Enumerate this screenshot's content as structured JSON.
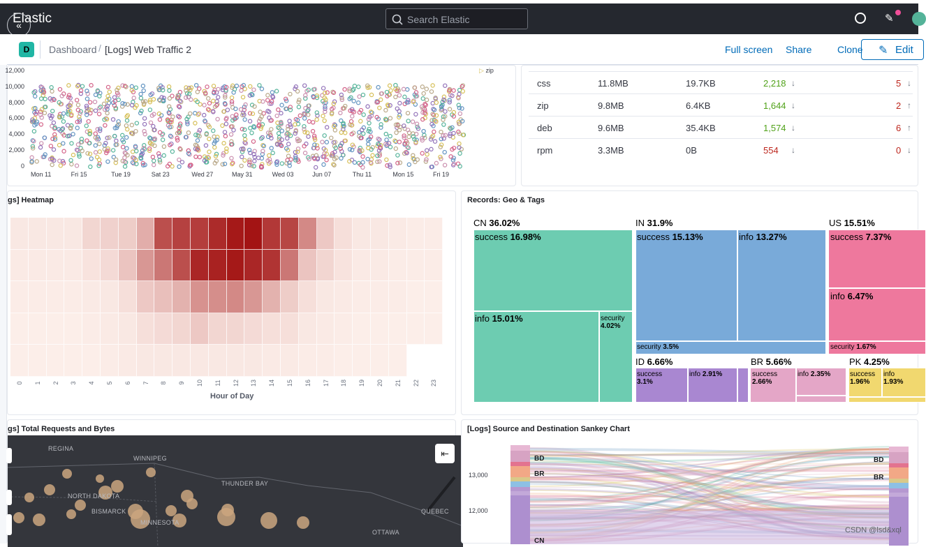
{
  "header": {
    "brand": "Elastic",
    "search_placeholder": "Search Elastic",
    "collapse_glyph": "«"
  },
  "breadcrumb": {
    "space_initial": "D",
    "items": [
      "Dashboard",
      "[Logs] Web Traffic 2"
    ],
    "separator": "/"
  },
  "actions": {
    "full_screen": "Full screen",
    "share": "Share",
    "clone": "Clone",
    "edit": "Edit"
  },
  "scatter_panel": {
    "y_ticks": [
      "12,000",
      "10,000",
      "8,000",
      "6,000",
      "4,000",
      "2,000",
      "0"
    ],
    "x_ticks": [
      "Mon 11",
      "Fri 15",
      "Tue 19",
      "Sat 23",
      "Wed 27",
      "May 31",
      "Wed 03",
      "Jun 07",
      "Thu 11",
      "Mon 15",
      "Fri 19"
    ],
    "legend_item": "zip"
  },
  "table_panel": {
    "rows": [
      {
        "ext": "css",
        "total": "11.8MB",
        "avg": "19.7KB",
        "count": "2,218",
        "count_dir": "↓",
        "errors": "5",
        "err_dir": "↓"
      },
      {
        "ext": "zip",
        "total": "9.8MB",
        "avg": "6.4KB",
        "count": "1,644",
        "count_dir": "↓",
        "errors": "2",
        "err_dir": "↑"
      },
      {
        "ext": "deb",
        "total": "9.6MB",
        "avg": "35.4KB",
        "count": "1,574",
        "count_dir": "↓",
        "errors": "6",
        "err_dir": "↑"
      },
      {
        "ext": "rpm",
        "total": "3.3MB",
        "avg": "0B",
        "count": "554",
        "count_dir": "↓",
        "errors": "0",
        "err_dir": "↓"
      }
    ]
  },
  "heatmap_panel": {
    "title": "gs] Heatmap",
    "xlabel": "Hour of Day",
    "x_ticks": [
      "0",
      "1",
      "2",
      "3",
      "4",
      "5",
      "6",
      "7",
      "8",
      "9",
      "10",
      "11",
      "12",
      "13",
      "14",
      "15",
      "16",
      "17",
      "18",
      "19",
      "20",
      "21",
      "22",
      "23"
    ],
    "rows": [
      [
        0.06,
        0.06,
        0.06,
        0.06,
        0.14,
        0.16,
        0.18,
        0.32,
        0.74,
        0.8,
        0.82,
        0.9,
        0.98,
        1.0,
        0.84,
        0.78,
        0.48,
        0.2,
        0.1,
        0.06,
        0.06,
        0.05,
        0.04,
        0.04
      ],
      [
        0.05,
        0.05,
        0.05,
        0.05,
        0.08,
        0.12,
        0.22,
        0.42,
        0.56,
        0.74,
        0.92,
        0.94,
        0.98,
        0.92,
        0.86,
        0.56,
        0.22,
        0.14,
        0.08,
        0.05,
        0.05,
        0.04,
        0.04,
        0.04
      ],
      [
        0.04,
        0.04,
        0.04,
        0.04,
        0.05,
        0.06,
        0.1,
        0.2,
        0.24,
        0.3,
        0.44,
        0.46,
        0.48,
        0.42,
        0.3,
        0.18,
        0.1,
        0.06,
        0.05,
        0.04,
        0.04,
        0.04,
        0.03,
        0.03
      ],
      [
        0.03,
        0.03,
        0.03,
        0.03,
        0.04,
        0.05,
        0.06,
        0.1,
        0.12,
        0.14,
        0.2,
        0.14,
        0.14,
        0.12,
        0.1,
        0.1,
        0.06,
        0.05,
        0.04,
        0.03,
        0.03,
        0.03,
        0.03,
        0.03
      ],
      [
        0.03,
        0.03,
        0.03,
        0.03,
        0.03,
        0.04,
        0.05,
        0.06,
        0.06,
        0.06,
        0.06,
        0.06,
        0.06,
        0.06,
        0.05,
        0.05,
        0.04,
        0.04,
        0.03,
        0.03,
        0.03,
        0.03,
        0.0,
        0.0
      ]
    ],
    "color": "#bd271e"
  },
  "treemap_panel": {
    "title": "Records: Geo & Tags",
    "groups": [
      {
        "name": "CN",
        "pct": "36.02%",
        "tags": [
          {
            "name": "success",
            "pct": "16.98%"
          },
          {
            "name": "info",
            "pct": "15.01%"
          },
          {
            "name": "security",
            "pct": "4.02%"
          }
        ]
      },
      {
        "name": "IN",
        "pct": "31.9%",
        "tags": [
          {
            "name": "success",
            "pct": "15.13%"
          },
          {
            "name": "info",
            "pct": "13.27%"
          },
          {
            "name": "security",
            "pct": "3.5%"
          }
        ]
      },
      {
        "name": "US",
        "pct": "15.51%",
        "tags": [
          {
            "name": "success",
            "pct": "7.37%"
          },
          {
            "name": "info",
            "pct": "6.47%"
          },
          {
            "name": "security",
            "pct": "1.67%"
          }
        ]
      },
      {
        "name": "ID",
        "pct": "6.66%",
        "tags": [
          {
            "name": "success",
            "pct": "3.1%"
          },
          {
            "name": "info",
            "pct": "2.91%"
          }
        ]
      },
      {
        "name": "BR",
        "pct": "5.66%",
        "tags": [
          {
            "name": "success",
            "pct": "2.66%"
          },
          {
            "name": "info",
            "pct": "2.35%"
          }
        ]
      },
      {
        "name": "PK",
        "pct": "4.25%",
        "tags": [
          {
            "name": "success",
            "pct": "1.96%"
          },
          {
            "name": "info",
            "pct": "1.93%"
          }
        ]
      }
    ],
    "colors": {
      "CN": "#6dccb1",
      "IN": "#79aad9",
      "US": "#ee789d",
      "ID": "#a987d1",
      "BR": "#e4a6c7",
      "PK": "#f1d86f"
    }
  },
  "map_panel": {
    "title": "gs] Total Requests and Bytes",
    "cities": [
      "REGINA",
      "WINNIPEG",
      "THUNDER BAY",
      "NORTH DAKOTA",
      "BISMARCK",
      "MINNESOTA",
      "QUEBEC",
      "OTTAWA"
    ]
  },
  "sankey_panel": {
    "title": "[Logs] Source and Destination Sankey Chart",
    "y_ticks": [
      "13,000",
      "12,000"
    ],
    "left_nodes": [
      "BD",
      "BR",
      "CN"
    ],
    "right_nodes": [
      "BD",
      "BR"
    ]
  },
  "watermark": "CSDN @lsd&xql"
}
